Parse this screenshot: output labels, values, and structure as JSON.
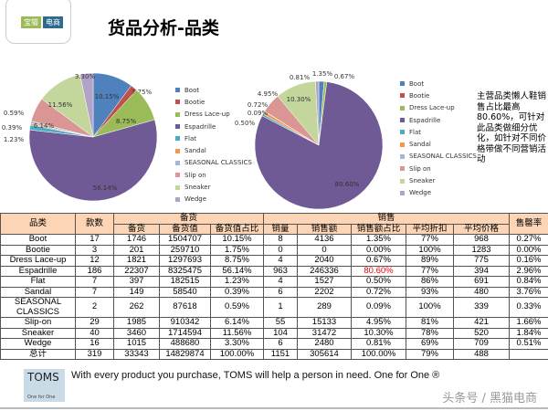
{
  "logo": {
    "text": "宝猫电商"
  },
  "title": "货品分析-品类",
  "colors": [
    "#4f81bd",
    "#c0504d",
    "#9bbb59",
    "#6f5a95",
    "#4bacc6",
    "#f79646",
    "#a5b6d7",
    "#d99694",
    "#c3d69b",
    "#b3a2c7"
  ],
  "categories": [
    "Boot",
    "Bootie",
    "Dress Lace-up",
    "Espadrille",
    "Flat",
    "Sandal",
    "SEASONAL CLASSICS",
    "Slip on",
    "Sneaker",
    "Wedge"
  ],
  "chart_data": [
    {
      "type": "pie",
      "categories": [
        "Boot",
        "Bootie",
        "Dress Lace-up",
        "Espadrille",
        "Flat",
        "Sandal",
        "SEASONAL CLASSICS",
        "Slip on",
        "Sneaker",
        "Wedge"
      ],
      "values": [
        10.15,
        1.75,
        8.75,
        56.14,
        1.23,
        0.39,
        0.59,
        6.14,
        11.56,
        3.3
      ],
      "labels": [
        "10.15%",
        "1.75%",
        "8.75%",
        "56.14%",
        "1.23%",
        "0.39%",
        "0.59%",
        "6.14%",
        "11.56%",
        "3.30%"
      ],
      "legend": "right"
    },
    {
      "type": "pie",
      "categories": [
        "Boot",
        "Bootie",
        "Dress Lace-up",
        "Espadrille",
        "Flat",
        "Sandal",
        "SEASONAL CLASSICS",
        "Slip on",
        "Sneaker",
        "Wedge"
      ],
      "values": [
        1.35,
        0.0,
        0.67,
        80.6,
        0.5,
        0.72,
        0.09,
        4.95,
        10.3,
        0.81
      ],
      "labels": [
        "1.35%",
        "",
        "0.67%",
        "80.60%",
        "0.50%",
        "0.72%",
        "0.09%",
        "4.95%",
        "10.30%",
        "0.81%"
      ],
      "legend": "right"
    }
  ],
  "note": "主营品类懒人鞋销售占比最高80.60%，可针对此品类做细分优化，如针对不同价格带做不同营销活动",
  "table": {
    "h_category": "品类",
    "h_styles": "款数",
    "h_stock_group": "备货",
    "h_sales_group": "销售",
    "h_sellthrough": "售罄率",
    "sub": [
      "备货",
      "备货值",
      "备货值占比",
      "销量",
      "销售额",
      "销售额占比",
      "平均折扣",
      "平均价格"
    ],
    "rows": [
      [
        "Boot",
        "17",
        "1746",
        "1504707",
        "10.15%",
        "8",
        "4136",
        "1.35%",
        "77%",
        "968",
        "0.27%"
      ],
      [
        "Bootie",
        "3",
        "201",
        "259710",
        "1.75%",
        "0",
        "0",
        "0.00%",
        "100%",
        "1283",
        "0.00%"
      ],
      [
        "Dress Lace-up",
        "12",
        "1821",
        "1297693",
        "8.75%",
        "4",
        "2040",
        "0.67%",
        "89%",
        "775",
        "0.16%"
      ],
      [
        "Espadrille",
        "186",
        "22307",
        "8325475",
        "56.14%",
        "963",
        "246336",
        "80.60%",
        "77%",
        "394",
        "2.96%"
      ],
      [
        "Flat",
        "7",
        "397",
        "182515",
        "1.23%",
        "4",
        "1527",
        "0.50%",
        "86%",
        "691",
        "0.84%"
      ],
      [
        "Sandal",
        "7",
        "149",
        "58540",
        "0.39%",
        "6",
        "2202",
        "0.72%",
        "93%",
        "480",
        "3.76%"
      ],
      [
        "SEASONAL CLASSICS",
        "2",
        "262",
        "87618",
        "0.59%",
        "1",
        "289",
        "0.09%",
        "100%",
        "339",
        "0.33%"
      ],
      [
        "Slip-on",
        "29",
        "1985",
        "910342",
        "6.14%",
        "55",
        "15133",
        "4.95%",
        "81%",
        "421",
        "1.66%"
      ],
      [
        "Sneaker",
        "40",
        "3460",
        "1714594",
        "11.56%",
        "104",
        "31472",
        "10.30%",
        "78%",
        "520",
        "1.84%"
      ],
      [
        "Wedge",
        "16",
        "1015",
        "488680",
        "3.30%",
        "6",
        "2480",
        "0.81%",
        "69%",
        "709",
        "0.51%"
      ],
      [
        "总计",
        "319",
        "33343",
        "14829874",
        "100.00%",
        "1151",
        "305614",
        "100.00%",
        "79%",
        "488",
        ""
      ]
    ]
  },
  "footer": {
    "brand": "TOMS",
    "brand_sub": "One for One",
    "tagline": "With every product you purchase, TOMS will help a person in need. One for One ®",
    "watermark": "头条号 / 黑猫电商"
  }
}
